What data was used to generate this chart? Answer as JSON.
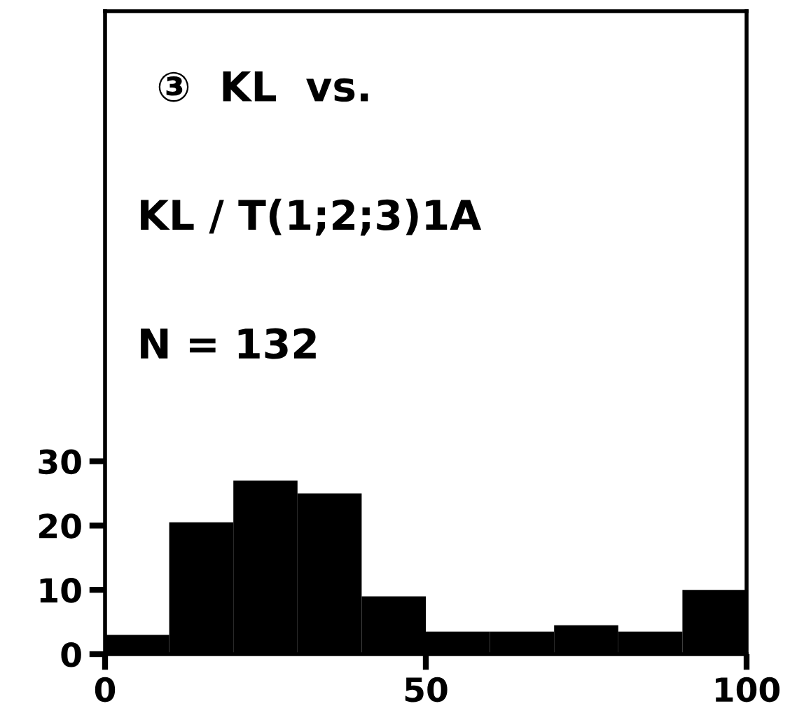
{
  "chart_data": {
    "type": "histogram",
    "title": "③  KL  vs.",
    "subtitle": "KL / T(1;2;3)1A",
    "annotations": [
      "N = 132"
    ],
    "bins": [
      0,
      10,
      20,
      30,
      40,
      50,
      60,
      70,
      80,
      90,
      100
    ],
    "values": [
      3,
      20.5,
      27,
      25,
      9,
      3.5,
      3.5,
      4.5,
      3.5,
      10
    ],
    "color": "#000000",
    "xlim": [
      0,
      100
    ],
    "ylim": [
      0,
      100
    ],
    "xticks": [
      0,
      50,
      100
    ],
    "yticks": [
      0,
      10,
      20,
      30
    ],
    "grid": false
  }
}
